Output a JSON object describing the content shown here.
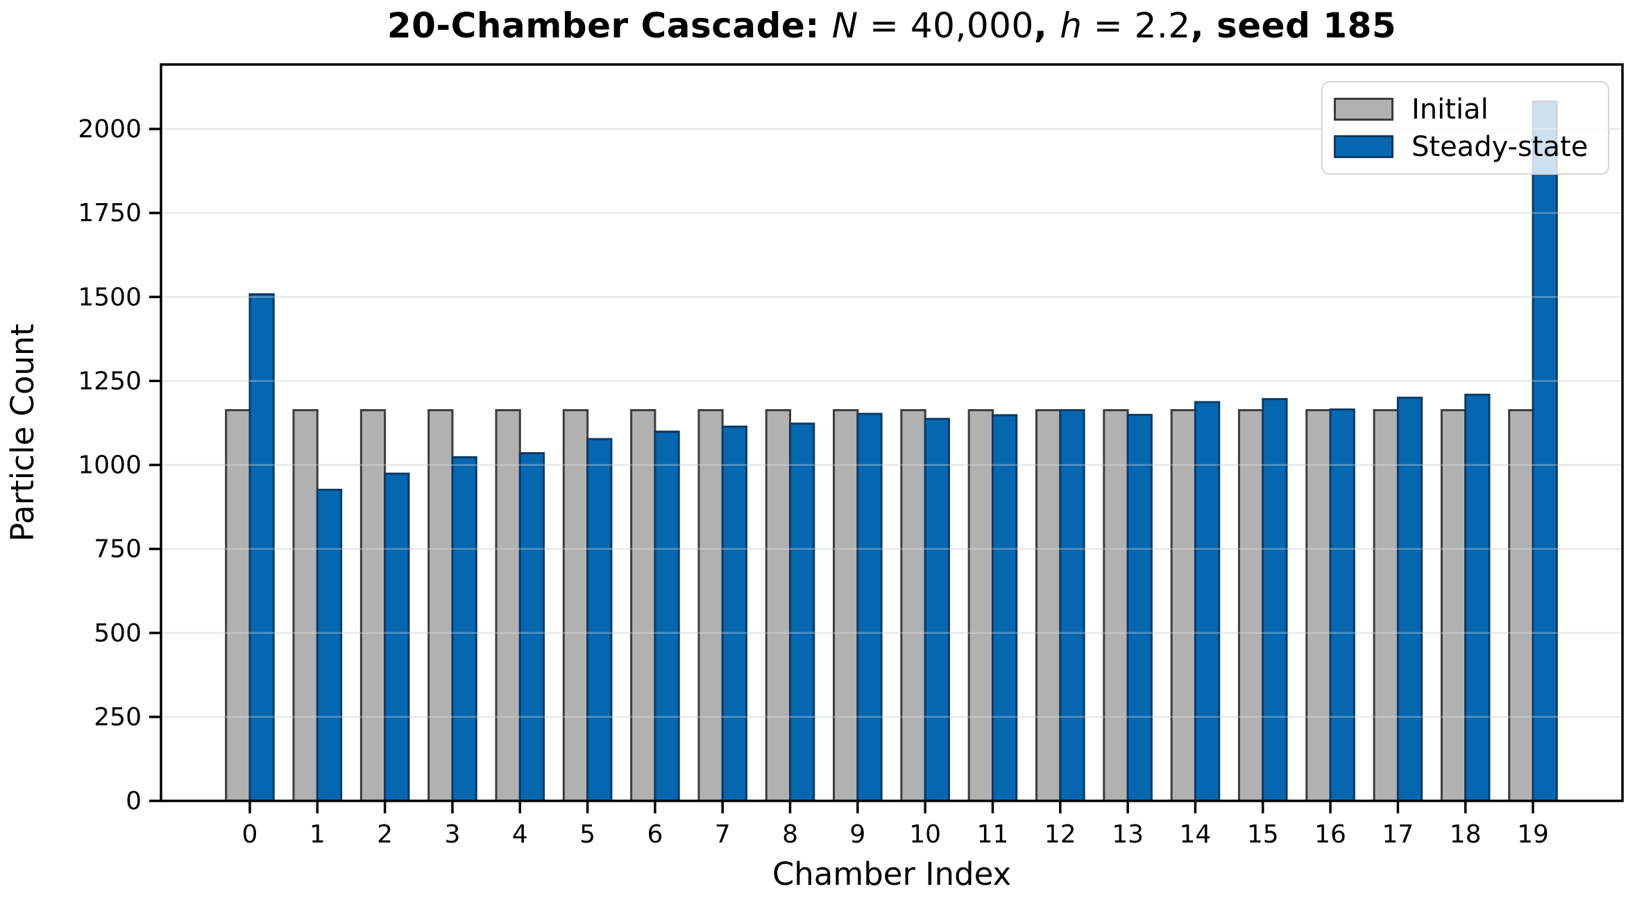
{
  "title": {
    "full_text": "20-Chamber Cascade: N = 40,000, h = 2.2, seed 185",
    "segments": [
      {
        "text": "20-Chamber Cascade: ",
        "style": "bold"
      },
      {
        "text": "N",
        "style": "ital"
      },
      {
        "text": " = 40,000",
        "style": "plain"
      },
      {
        "text": ", ",
        "style": "bold"
      },
      {
        "text": "h",
        "style": "ital"
      },
      {
        "text": " = 2.2",
        "style": "plain"
      },
      {
        "text": ", seed 185",
        "style": "bold"
      }
    ]
  },
  "legend": {
    "items": [
      {
        "label": "Initial"
      },
      {
        "label": "Steady-state"
      }
    ]
  },
  "chart_data": {
    "type": "bar",
    "title": "20-Chamber Cascade: N = 40,000, h = 2.2, seed 185",
    "xlabel": "Chamber Index",
    "ylabel": "Particle Count",
    "categories": [
      0,
      1,
      2,
      3,
      4,
      5,
      6,
      7,
      8,
      9,
      10,
      11,
      12,
      13,
      14,
      15,
      16,
      17,
      18,
      19
    ],
    "series": [
      {
        "name": "Initial",
        "fill": "#b1b1b1",
        "edge": "#3c3c3c",
        "values": [
          1163,
          1163,
          1163,
          1163,
          1163,
          1163,
          1163,
          1163,
          1163,
          1163,
          1163,
          1163,
          1163,
          1163,
          1163,
          1163,
          1163,
          1163,
          1163,
          1163
        ]
      },
      {
        "name": "Steady-state",
        "fill": "#0667b1",
        "edge": "#0c3a66",
        "values": [
          1508,
          926,
          974,
          1023,
          1035,
          1077,
          1099,
          1114,
          1123,
          1152,
          1137,
          1148,
          1163,
          1149,
          1187,
          1196,
          1165,
          1200,
          1209,
          2082
        ]
      }
    ],
    "ylim": [
      0,
      2192
    ],
    "yticks": [
      0,
      250,
      500,
      750,
      1000,
      1250,
      1500,
      1750,
      2000
    ],
    "grid": true,
    "grid_color": "#e8e8e8",
    "legend_position": "upper right",
    "axis_color": "#000000"
  }
}
